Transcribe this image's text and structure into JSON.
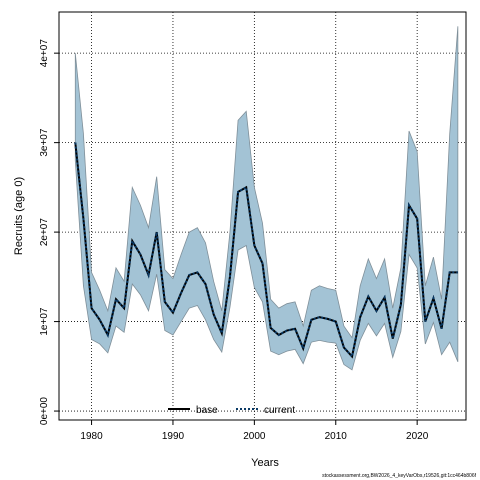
{
  "chart_data": {
    "type": "line",
    "xlabel": "Years",
    "ylabel": "Recruits (age 0)",
    "xlim": [
      1976,
      2026
    ],
    "ylim": [
      -1000000,
      44600000
    ],
    "x_ticks": [
      1980,
      1990,
      2000,
      2010,
      2020
    ],
    "x_tick_labels": [
      "1980",
      "1990",
      "2000",
      "2010",
      "2020"
    ],
    "y_ticks": [
      0,
      10000000,
      20000000,
      30000000,
      40000000
    ],
    "y_tick_labels": [
      "0e+00",
      "1e+07",
      "2e+07",
      "3e+07",
      "4e+07"
    ],
    "grid": true,
    "legend_position": "bottom-center",
    "legend": [
      {
        "label": "base",
        "color": "#000000",
        "style": "solid"
      },
      {
        "label": "current",
        "color": "#0a3a66",
        "style": "dotted"
      }
    ],
    "x": [
      1978,
      1979,
      1980,
      1981,
      1982,
      1983,
      1984,
      1985,
      1986,
      1987,
      1988,
      1989,
      1990,
      1991,
      1992,
      1993,
      1994,
      1995,
      1996,
      1997,
      1998,
      1999,
      2000,
      2001,
      2002,
      2003,
      2004,
      2005,
      2006,
      2007,
      2008,
      2009,
      2010,
      2011,
      2012,
      2013,
      2014,
      2015,
      2016,
      2017,
      2018,
      2019,
      2020,
      2021,
      2022,
      2023,
      2024,
      2025
    ],
    "band": {
      "color": "#a3c3d5",
      "upper": [
        40000000,
        31000000,
        15500000,
        13500000,
        11200000,
        16000000,
        14500000,
        25000000,
        23000000,
        20500000,
        26200000,
        15800000,
        14800000,
        17500000,
        20000000,
        20500000,
        18800000,
        14500000,
        11200000,
        20000000,
        32500000,
        33500000,
        25000000,
        21000000,
        12500000,
        11500000,
        12000000,
        12200000,
        9500000,
        13500000,
        14000000,
        13700000,
        13500000,
        9500000,
        8200000,
        14000000,
        17000000,
        14800000,
        17000000,
        11500000,
        16000000,
        31300000,
        29000000,
        14000000,
        17200000,
        12500000,
        31000000,
        43000000
      ],
      "lower": [
        28000000,
        14000000,
        8000000,
        7500000,
        6500000,
        9500000,
        8800000,
        14200000,
        13000000,
        11200000,
        15300000,
        9000000,
        8500000,
        10000000,
        11500000,
        11800000,
        10200000,
        8000000,
        6600000,
        11600000,
        18000000,
        18500000,
        13800000,
        12200000,
        6700000,
        6300000,
        6700000,
        6900000,
        5300000,
        7700000,
        7900000,
        7700000,
        7600000,
        5200000,
        4600000,
        7900000,
        9800000,
        8400000,
        9800000,
        6000000,
        8900000,
        17500000,
        16000000,
        7500000,
        9900000,
        6300000,
        7700000,
        5500000
      ]
    },
    "series": [
      {
        "name": "base",
        "color": "#000000",
        "style": "solid",
        "values": [
          30000000,
          21500000,
          11500000,
          10200000,
          8500000,
          12500000,
          11500000,
          19000000,
          17500000,
          15200000,
          20000000,
          12200000,
          11000000,
          13200000,
          15200000,
          15500000,
          14200000,
          10800000,
          8700000,
          15000000,
          24500000,
          25000000,
          18500000,
          16500000,
          9300000,
          8500000,
          9000000,
          9200000,
          7000000,
          10200000,
          10500000,
          10300000,
          10000000,
          7100000,
          6100000,
          10500000,
          12800000,
          11200000,
          12700000,
          8100000,
          11900000,
          23000000,
          21500000,
          10000000,
          12600000,
          9200000,
          15500000,
          15500000
        ]
      },
      {
        "name": "current",
        "color": "#0a3a66",
        "style": "dotted",
        "values": [
          30000000,
          21500000,
          11500000,
          10200000,
          8500000,
          12500000,
          11500000,
          19000000,
          17500000,
          15200000,
          20000000,
          12200000,
          11000000,
          13200000,
          15200000,
          15500000,
          14200000,
          10800000,
          8700000,
          15000000,
          24500000,
          25000000,
          18500000,
          16500000,
          9300000,
          8500000,
          9000000,
          9200000,
          7000000,
          10200000,
          10500000,
          10300000,
          10000000,
          7100000,
          6100000,
          10500000,
          12800000,
          11200000,
          12700000,
          8100000,
          11900000,
          23000000,
          21500000,
          10000000,
          12600000,
          9200000,
          15500000,
          15500000
        ]
      }
    ],
    "footer": "stockassessment.org,BW2026_4_keyVarObs,r19526,git:1cc464b806f"
  }
}
